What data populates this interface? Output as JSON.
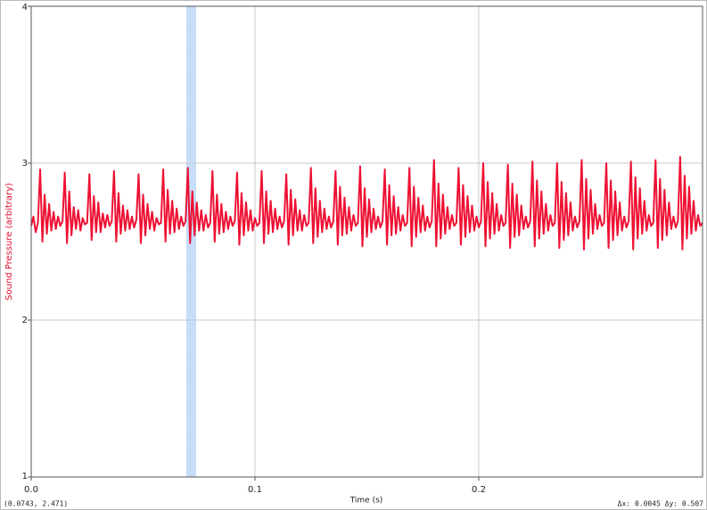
{
  "chart_data": {
    "type": "line",
    "y_label": "Sound Pressure (arbitrary)",
    "x_label": "Time (s)",
    "xlim": [
      0,
      0.3
    ],
    "ylim": [
      1,
      4
    ],
    "xticks": [
      {
        "value": 0,
        "label": "0.0"
      },
      {
        "value": 0.1,
        "label": "0.1"
      },
      {
        "value": 0.2,
        "label": "0.2"
      }
    ],
    "yticks": [
      1,
      2,
      3,
      4
    ],
    "grid": true,
    "selection": [
      0.0693,
      0.0737
    ],
    "cursor_readout": "(0.0743, 2.471)",
    "delta_readout": "Δx: 0.0045 Δy: 0.507",
    "x": [
      0,
      0.001,
      0.002,
      0.003,
      0.004,
      0.005,
      0.006,
      0.007,
      0.008,
      0.009,
      0.01,
      0.011,
      0.012,
      0.013,
      0.014,
      0.015,
      0.016,
      0.017,
      0.018,
      0.019,
      0.02,
      0.021,
      0.022,
      0.023,
      0.024,
      0.025,
      0.026,
      0.027,
      0.028,
      0.029,
      0.03,
      0.031,
      0.032,
      0.033,
      0.034,
      0.035,
      0.036,
      0.037,
      0.038,
      0.039,
      0.04,
      0.041,
      0.042,
      0.043,
      0.044,
      0.045,
      0.046,
      0.047,
      0.048,
      0.049,
      0.05,
      0.051,
      0.052,
      0.053,
      0.054,
      0.055,
      0.056,
      0.057,
      0.058,
      0.059,
      0.06,
      0.061,
      0.062,
      0.063,
      0.064,
      0.065,
      0.066,
      0.067,
      0.068,
      0.069,
      0.07,
      0.071,
      0.072,
      0.073,
      0.074,
      0.075,
      0.076,
      0.077,
      0.078,
      0.079,
      0.08,
      0.081,
      0.082,
      0.083,
      0.084,
      0.085,
      0.086,
      0.087,
      0.088,
      0.089,
      0.09,
      0.091,
      0.092,
      0.093,
      0.094,
      0.095,
      0.096,
      0.097,
      0.098,
      0.099,
      0.1,
      0.101,
      0.102,
      0.103,
      0.104,
      0.105,
      0.106,
      0.107,
      0.108,
      0.109,
      0.11,
      0.111,
      0.112,
      0.113,
      0.114,
      0.115,
      0.116,
      0.117,
      0.118,
      0.119,
      0.12,
      0.121,
      0.122,
      0.123,
      0.124,
      0.125,
      0.126,
      0.127,
      0.128,
      0.129,
      0.13,
      0.131,
      0.132,
      0.133,
      0.134,
      0.135,
      0.136,
      0.137,
      0.138,
      0.139,
      0.14,
      0.141,
      0.142,
      0.143,
      0.144,
      0.145,
      0.146,
      0.147,
      0.148,
      0.149,
      0.15,
      0.151,
      0.152,
      0.153,
      0.154,
      0.155,
      0.156,
      0.157,
      0.158,
      0.159,
      0.16,
      0.161,
      0.162,
      0.163,
      0.164,
      0.165,
      0.166,
      0.167,
      0.168,
      0.169,
      0.17,
      0.171,
      0.172,
      0.173,
      0.174,
      0.175,
      0.176,
      0.177,
      0.178,
      0.179,
      0.18,
      0.181,
      0.182,
      0.183,
      0.184,
      0.185,
      0.186,
      0.187,
      0.188,
      0.189,
      0.19,
      0.191,
      0.192,
      0.193,
      0.194,
      0.195,
      0.196,
      0.197,
      0.198,
      0.199,
      0.2,
      0.201,
      0.202,
      0.203,
      0.204,
      0.205,
      0.206,
      0.207,
      0.208,
      0.209,
      0.21,
      0.211,
      0.212,
      0.213,
      0.214,
      0.215,
      0.216,
      0.217,
      0.218,
      0.219,
      0.22,
      0.221,
      0.222,
      0.223,
      0.224,
      0.225,
      0.226,
      0.227,
      0.228,
      0.229,
      0.23,
      0.231,
      0.232,
      0.233,
      0.234,
      0.235,
      0.236,
      0.237,
      0.238,
      0.239,
      0.24,
      0.241,
      0.242,
      0.243,
      0.244,
      0.245,
      0.246,
      0.247,
      0.248,
      0.249,
      0.25,
      0.251,
      0.252,
      0.253,
      0.254,
      0.255,
      0.256,
      0.257,
      0.258,
      0.259,
      0.26,
      0.261,
      0.262,
      0.263,
      0.264,
      0.265,
      0.266,
      0.267,
      0.268,
      0.269,
      0.27,
      0.271,
      0.272,
      0.273,
      0.274,
      0.275,
      0.276,
      0.277,
      0.278,
      0.279,
      0.28,
      0.281,
      0.282,
      0.283,
      0.284,
      0.285,
      0.286,
      0.287,
      0.288,
      0.289,
      0.29,
      0.291,
      0.292,
      0.293,
      0.294,
      0.295,
      0.296,
      0.297,
      0.298,
      0.299,
      0.3
    ],
    "series": [
      {
        "color": "#ee1133",
        "values": [
          2.6,
          2.66,
          2.56,
          2.62,
          2.96,
          2.5,
          2.8,
          2.55,
          2.74,
          2.57,
          2.69,
          2.58,
          2.66,
          2.6,
          2.63,
          2.94,
          2.49,
          2.82,
          2.54,
          2.72,
          2.58,
          2.7,
          2.57,
          2.65,
          2.61,
          2.62,
          2.93,
          2.51,
          2.79,
          2.56,
          2.75,
          2.56,
          2.68,
          2.59,
          2.67,
          2.6,
          2.63,
          2.95,
          2.5,
          2.81,
          2.55,
          2.73,
          2.57,
          2.7,
          2.58,
          2.66,
          2.59,
          2.64,
          2.93,
          2.49,
          2.8,
          2.54,
          2.74,
          2.58,
          2.69,
          2.57,
          2.65,
          2.61,
          2.62,
          2.96,
          2.5,
          2.83,
          2.55,
          2.76,
          2.56,
          2.71,
          2.58,
          2.66,
          2.6,
          2.63,
          2.97,
          2.49,
          2.82,
          2.54,
          2.75,
          2.57,
          2.7,
          2.57,
          2.67,
          2.59,
          2.62,
          2.95,
          2.5,
          2.8,
          2.55,
          2.74,
          2.56,
          2.69,
          2.58,
          2.66,
          2.6,
          2.63,
          2.94,
          2.48,
          2.81,
          2.54,
          2.75,
          2.57,
          2.7,
          2.57,
          2.65,
          2.6,
          2.62,
          2.95,
          2.49,
          2.82,
          2.55,
          2.76,
          2.56,
          2.71,
          2.58,
          2.66,
          2.59,
          2.63,
          2.93,
          2.48,
          2.83,
          2.54,
          2.77,
          2.57,
          2.7,
          2.57,
          2.67,
          2.6,
          2.62,
          2.97,
          2.49,
          2.84,
          2.53,
          2.76,
          2.56,
          2.71,
          2.58,
          2.66,
          2.59,
          2.63,
          2.95,
          2.48,
          2.85,
          2.54,
          2.78,
          2.55,
          2.72,
          2.57,
          2.67,
          2.6,
          2.62,
          2.98,
          2.47,
          2.84,
          2.53,
          2.77,
          2.56,
          2.71,
          2.58,
          2.66,
          2.59,
          2.63,
          2.96,
          2.48,
          2.86,
          2.54,
          2.79,
          2.55,
          2.72,
          2.57,
          2.67,
          2.6,
          2.62,
          2.97,
          2.47,
          2.85,
          2.53,
          2.78,
          2.56,
          2.73,
          2.57,
          2.66,
          2.59,
          2.63,
          3.02,
          2.47,
          2.87,
          2.52,
          2.8,
          2.55,
          2.72,
          2.58,
          2.67,
          2.6,
          2.62,
          2.97,
          2.48,
          2.86,
          2.53,
          2.79,
          2.56,
          2.73,
          2.57,
          2.66,
          2.59,
          2.63,
          3.0,
          2.47,
          2.88,
          2.52,
          2.81,
          2.55,
          2.74,
          2.57,
          2.67,
          2.6,
          2.62,
          2.99,
          2.46,
          2.87,
          2.53,
          2.8,
          2.54,
          2.73,
          2.58,
          2.66,
          2.59,
          2.63,
          3.01,
          2.47,
          2.89,
          2.52,
          2.82,
          2.55,
          2.74,
          2.57,
          2.67,
          2.6,
          2.62,
          3.0,
          2.46,
          2.88,
          2.51,
          2.81,
          2.54,
          2.75,
          2.57,
          2.66,
          2.59,
          2.63,
          3.02,
          2.45,
          2.9,
          2.52,
          2.83,
          2.55,
          2.74,
          2.58,
          2.67,
          2.6,
          2.62,
          3.0,
          2.46,
          2.89,
          2.51,
          2.82,
          2.54,
          2.75,
          2.57,
          2.66,
          2.59,
          2.63,
          3.01,
          2.45,
          2.91,
          2.52,
          2.84,
          2.55,
          2.76,
          2.57,
          2.67,
          2.6,
          2.62,
          3.02,
          2.46,
          2.9,
          2.51,
          2.83,
          2.54,
          2.75,
          2.58,
          2.66,
          2.59,
          2.63,
          3.04,
          2.45,
          2.92,
          2.52,
          2.85,
          2.55,
          2.76,
          2.57,
          2.67,
          2.6,
          2.62
        ]
      }
    ]
  }
}
